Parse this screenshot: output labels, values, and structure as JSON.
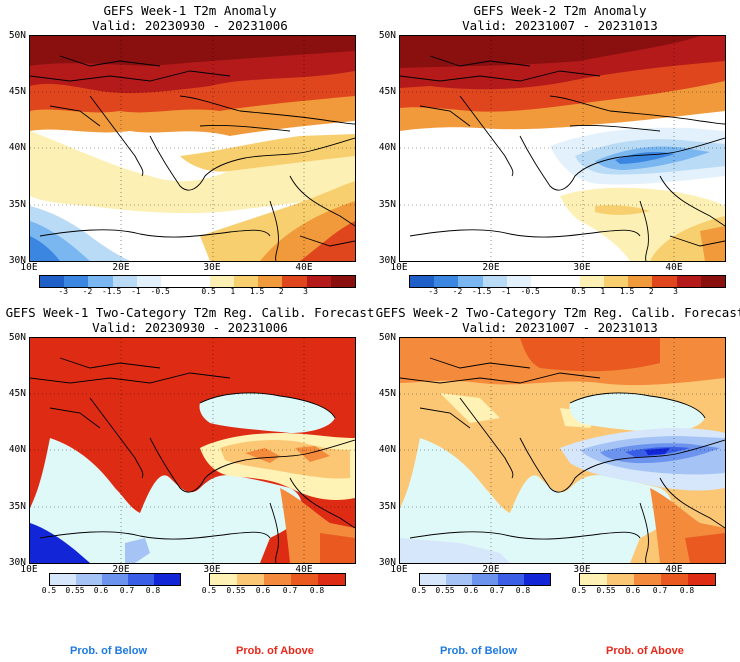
{
  "colors": {
    "below_label": "#1f7ae0",
    "above_label": "#e8281b",
    "water_light": "#dff8f8"
  },
  "anomaly_scale": {
    "colors": [
      "#1f5fc8",
      "#3b86e0",
      "#7ab6f0",
      "#b9dbf6",
      "#e2f1fb",
      "#ffffff",
      "#ffffff",
      "#fdf0b4",
      "#f8cf6e",
      "#f19a3b",
      "#e0461e",
      "#b51a1a",
      "#8a1010"
    ],
    "labels": [
      "-3",
      "-2",
      "-1.5",
      "-1",
      "-0.5",
      "0.5",
      "1",
      "1.5",
      "2",
      "3"
    ]
  },
  "prob_below_scale": {
    "colors": [
      "#d6e6fb",
      "#a5c4f5",
      "#6c93ee",
      "#3a5fe6",
      "#1226d8"
    ],
    "labels": [
      "0.5",
      "0.55",
      "0.6",
      "0.7",
      "0.8"
    ]
  },
  "prob_above_scale": {
    "colors": [
      "#fff2b4",
      "#fbc774",
      "#f48a3c",
      "#ea5a20",
      "#de2b14"
    ],
    "labels": [
      "0.5",
      "0.55",
      "0.6",
      "0.7",
      "0.8"
    ]
  },
  "panels": [
    {
      "title1": "GEFS Week-1 T2m Anomaly",
      "title2": "Valid: 20230930 - 20231006",
      "lat_labels": [
        "50N",
        "45N",
        "40N",
        "35N",
        "30N"
      ],
      "lon_labels": [
        "10E",
        "20E",
        "30E",
        "40E"
      ]
    },
    {
      "title1": "GEFS Week-2 T2m Anomaly",
      "title2": "Valid: 20231007 - 20231013",
      "lat_labels": [
        "50N",
        "45N",
        "40N",
        "35N",
        "30N"
      ],
      "lon_labels": [
        "10E",
        "20E",
        "30E",
        "40E"
      ]
    },
    {
      "title1": "GEFS Week-1 Two-Category T2m Reg. Calib. Forecast",
      "title2": "Valid: 20230930 - 20231006",
      "lat_labels": [
        "50N",
        "45N",
        "40N",
        "35N",
        "30N"
      ],
      "lon_labels": [
        "10E",
        "20E",
        "30E",
        "40E"
      ]
    },
    {
      "title1": "GEFS Week-2 Two-Category T2m Reg. Calib. Forecast",
      "title2": "Valid: 20231007 - 20231013",
      "lat_labels": [
        "50N",
        "45N",
        "40N",
        "35N",
        "30N"
      ],
      "lon_labels": [
        "10E",
        "20E",
        "30E",
        "40E"
      ]
    }
  ],
  "footer": {
    "below_left": "Prob. of Below",
    "above_left": "Prob. of Above",
    "below_right": "Prob. of Below",
    "above_right": "Prob. of Above"
  }
}
